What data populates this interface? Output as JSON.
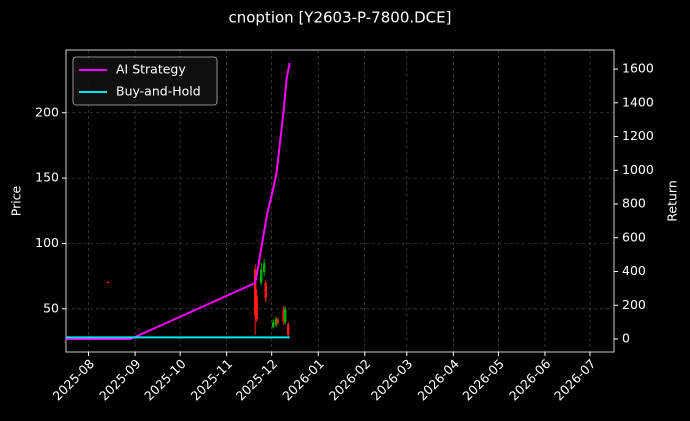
{
  "chart_data": {
    "type": "candlestick",
    "title": "cnoption [Y2603-P-7800.DCE]",
    "y_label": "Price",
    "y2_label": "Return",
    "xlim": [
      "2025-07-17",
      "2026-07-17"
    ],
    "xticks": [
      {
        "value": "2025-08-01",
        "label": "2025-08"
      },
      {
        "value": "2025-09-01",
        "label": "2025-09"
      },
      {
        "value": "2025-10-01",
        "label": "2025-10"
      },
      {
        "value": "2025-11-01",
        "label": "2025-11"
      },
      {
        "value": "2025-12-01",
        "label": "2025-12"
      },
      {
        "value": "2026-01-01",
        "label": "2026-01"
      },
      {
        "value": "2026-02-01",
        "label": "2026-02"
      },
      {
        "value": "2026-03-01",
        "label": "2026-03"
      },
      {
        "value": "2026-04-01",
        "label": "2026-04"
      },
      {
        "value": "2026-05-01",
        "label": "2026-05"
      },
      {
        "value": "2026-06-01",
        "label": "2026-06"
      },
      {
        "value": "2026-07-01",
        "label": "2026-07"
      }
    ],
    "ylim": [
      17,
      248
    ],
    "yticks": [
      50,
      100,
      150,
      200
    ],
    "y2lim": [
      -77,
      1713
    ],
    "y2ticks": [
      0,
      200,
      400,
      600,
      800,
      1000,
      1200,
      1400,
      1600
    ],
    "grid": true,
    "legend": "upper left",
    "candles": {
      "up_color": "#00b000",
      "down_color": "#ff1a1a",
      "x": [
        "2025-08-14",
        "2025-11-20",
        "2025-11-21",
        "2025-11-24",
        "2025-11-26",
        "2025-11-27",
        "2025-12-02",
        "2025-12-04",
        "2025-12-05",
        "2025-12-09",
        "2025-12-10",
        "2025-12-12"
      ],
      "open": [
        70.5,
        80,
        60,
        70,
        78,
        70,
        36,
        38,
        42,
        50,
        40,
        38
      ],
      "high": [
        71,
        84,
        65,
        85,
        88,
        72,
        42,
        44,
        43,
        52,
        52,
        40
      ],
      "low": [
        69.5,
        30,
        40,
        68,
        75,
        55,
        35,
        36,
        38,
        38,
        38,
        28
      ],
      "close": [
        70,
        45,
        42,
        80,
        85,
        58,
        40,
        42,
        39,
        40,
        50,
        30
      ]
    },
    "series": [
      {
        "name": "AI Strategy",
        "color": "#ff00ff",
        "axis": "y2",
        "x": [
          "2025-07-17",
          "2025-08-29",
          "2025-11-20",
          "2025-11-22",
          "2025-11-25",
          "2025-11-28",
          "2025-12-01",
          "2025-12-04",
          "2025-12-06",
          "2025-12-09",
          "2025-12-11",
          "2025-12-13"
        ],
        "values": [
          0,
          0,
          332,
          430,
          587,
          741,
          853,
          972,
          1120,
          1357,
          1547,
          1636
        ]
      },
      {
        "name": "Buy-and-Hold",
        "color": "#00e5ee",
        "axis": "y2",
        "x": [
          "2025-07-17",
          "2025-12-13"
        ],
        "values": [
          10,
          10
        ]
      }
    ]
  }
}
